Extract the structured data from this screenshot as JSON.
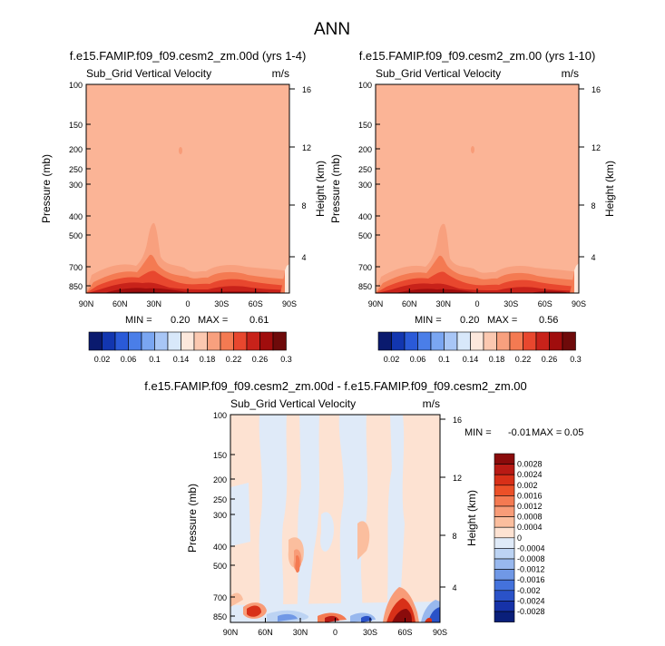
{
  "title": "ANN",
  "chart_data": [
    {
      "type": "heatmap",
      "title": "f.e15.FAMIP.f09_f09.cesm2_zm.00d (yrs 1-4)",
      "subtitle": "Sub_Grid Vertical Velocity",
      "units": "m/s",
      "xlabel": "",
      "ylabel": "Pressure (mb)",
      "y2label": "Height (km)",
      "x_ticks": [
        "90N",
        "60N",
        "30N",
        "0",
        "30S",
        "60S",
        "90S"
      ],
      "y_ticks": [
        "100",
        "150",
        "200",
        "250",
        "300",
        "400",
        "500",
        "700",
        "850"
      ],
      "y_ticks_present": [
        "100",
        "150",
        "200",
        "250",
        "300",
        "400",
        "500",
        "700",
        "850"
      ],
      "height_ticks": [
        "16",
        "12",
        "8",
        "4"
      ],
      "ylim": [
        1000,
        100
      ],
      "min_label": "MIN =",
      "min": "0.20",
      "max_label": "MAX =",
      "max": "0.61",
      "background_level": "0.18-0.22"
    },
    {
      "type": "heatmap",
      "title": "f.e15.FAMIP.f09_f09.cesm2_zm.00 (yrs 1-10)",
      "subtitle": "Sub_Grid Vertical Velocity",
      "units": "m/s",
      "xlabel": "",
      "ylabel": "Pressure (mb)",
      "y2label": "Height (km)",
      "x_ticks": [
        "90N",
        "60N",
        "30N",
        "0",
        "30S",
        "60S",
        "90S"
      ],
      "y_ticks": [
        "100",
        "150",
        "200",
        "250",
        "300",
        "400",
        "500",
        "700",
        "850"
      ],
      "height_ticks": [
        "16",
        "12",
        "8",
        "4"
      ],
      "ylim": [
        1000,
        100
      ],
      "min_label": "MIN =",
      "min": "0.20",
      "max_label": "MAX =",
      "max": "0.56",
      "background_level": "0.18-0.22"
    },
    {
      "type": "heatmap",
      "title": "f.e15.FAMIP.f09_f09.cesm2_zm.00d - f.e15.FAMIP.f09_f09.cesm2_zm.00",
      "subtitle": "Sub_Grid Vertical Velocity",
      "units": "m/s",
      "xlabel": "",
      "ylabel": "Pressure (mb)",
      "y2label": "Height (km)",
      "x_ticks": [
        "90N",
        "60N",
        "30N",
        "0",
        "30S",
        "60S",
        "90S"
      ],
      "y_ticks": [
        "100",
        "150",
        "200",
        "250",
        "300",
        "400",
        "500",
        "700",
        "850"
      ],
      "height_ticks": [
        "16",
        "12",
        "8",
        "4"
      ],
      "ylim": [
        1000,
        100
      ],
      "min_label": "MIN =",
      "min": "-0.01",
      "max_label": "MAX =",
      "max": "0.05"
    }
  ],
  "colorbar_top": {
    "labels": [
      "0.02",
      "0.06",
      "0.1",
      "0.14",
      "0.18",
      "0.22",
      "0.26",
      "0.3"
    ],
    "colors": [
      "#0a1a6e",
      "#1236b0",
      "#2a5ad8",
      "#4a7ee8",
      "#7aa6f2",
      "#a8c6f6",
      "#d8e8fa",
      "#fde8dc",
      "#fbc8b0",
      "#f8a07e",
      "#f47a52",
      "#e8472e",
      "#c8221a",
      "#a00d0d",
      "#6e0a0a"
    ]
  },
  "colorbar_diff": {
    "labels": [
      "0.0028",
      "0.0024",
      "0.002",
      "0.0016",
      "0.0012",
      "0.0008",
      "0.0004",
      "0",
      "-0.0004",
      "-0.0008",
      "-0.0012",
      "-0.0016",
      "-0.002",
      "-0.0024",
      "-0.0028"
    ],
    "colors": [
      "#8a0b0b",
      "#b81a14",
      "#d83018",
      "#ec5028",
      "#f47a52",
      "#f89c78",
      "#fbbe9e",
      "#fde2d2",
      "#dfeaf8",
      "#bcd3f3",
      "#98b8ee",
      "#7098e6",
      "#4472dc",
      "#2a52c8",
      "#1632a8",
      "#0a1f7a"
    ]
  }
}
